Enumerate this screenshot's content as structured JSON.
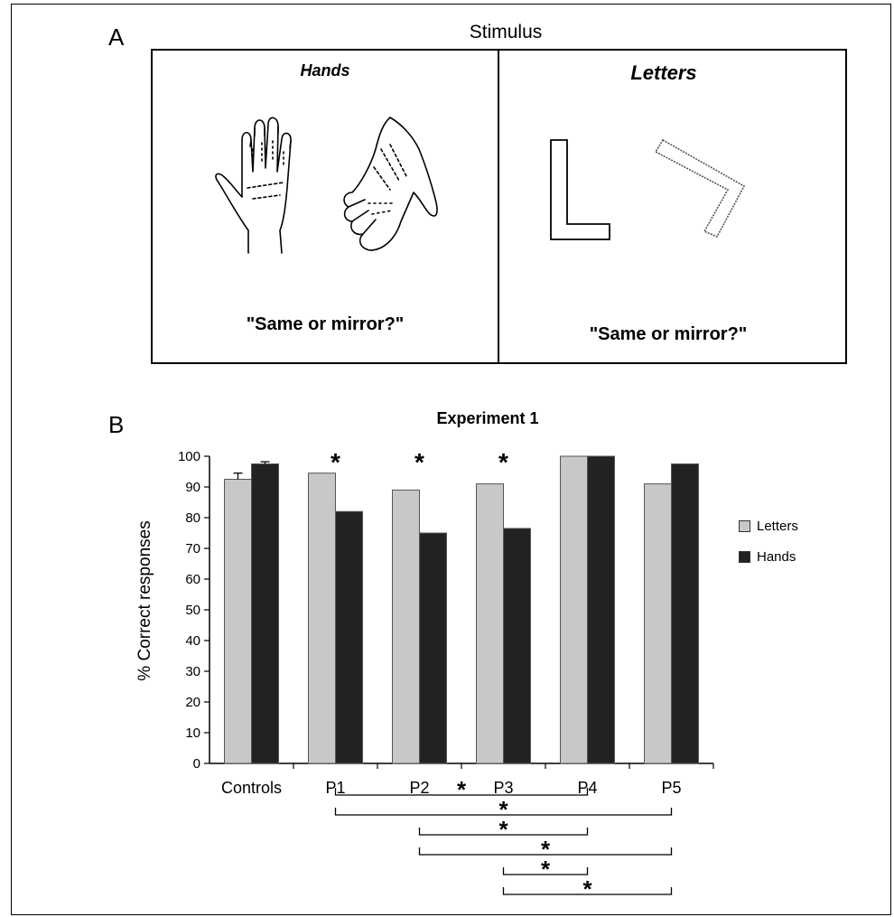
{
  "panel_a": {
    "letter": "A",
    "title": "Stimulus",
    "left": {
      "heading": "Hands",
      "question": "\"Same or mirror?\""
    },
    "right": {
      "heading": "Letters",
      "question": "\"Same or mirror?\""
    }
  },
  "panel_b": {
    "letter": "B"
  },
  "chart_data": {
    "type": "bar",
    "title": "Experiment 1",
    "xlabel": "",
    "ylabel": "% Correct responses",
    "ylim": [
      0,
      100
    ],
    "yticks": [
      "0",
      "10",
      "20",
      "30",
      "40",
      "50",
      "60",
      "70",
      "80",
      "90",
      "100"
    ],
    "categories": [
      "Controls",
      "P1",
      "P2",
      "P3",
      "P4",
      "P5"
    ],
    "series": [
      {
        "name": "Letters",
        "color": "#c8c8c8",
        "values": [
          92.5,
          94.5,
          89,
          91,
          100,
          91
        ]
      },
      {
        "name": "Hands",
        "color": "#222222",
        "values": [
          97.5,
          82,
          75,
          76.5,
          100,
          97.5
        ]
      }
    ],
    "error_bars": {
      "Controls": {
        "Letters": 2,
        "Hands": 0.7
      }
    },
    "significance_markers_above_bars": [
      "P1",
      "P2",
      "P3"
    ],
    "significance_brackets": [
      {
        "from": "P1",
        "to": "P4",
        "label": "*"
      },
      {
        "from": "P1",
        "to": "P5",
        "label": "*"
      },
      {
        "from": "P2",
        "to": "P4",
        "label": "*"
      },
      {
        "from": "P2",
        "to": "P5",
        "label": "*"
      },
      {
        "from": "P3",
        "to": "P4",
        "label": "*"
      },
      {
        "from": "P3",
        "to": "P5",
        "label": "*"
      }
    ],
    "legend_position": "right",
    "grid": false
  }
}
